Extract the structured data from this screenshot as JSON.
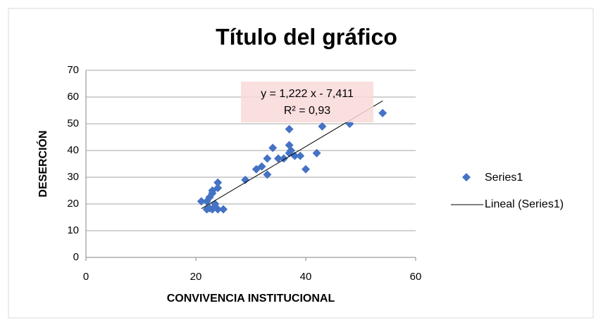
{
  "chart_data": {
    "type": "scatter",
    "title": "Título del gráfico",
    "x_label": "CONVIVENCIA INSTITUCIONAL",
    "y_label": "DESERCIÓN",
    "series": [
      {
        "name": "Series1",
        "color": "#4472c4",
        "x": [
          21,
          22,
          22,
          22.5,
          23,
          23,
          24,
          24,
          22.5,
          23,
          24,
          25,
          23.5,
          29,
          31,
          32,
          33,
          33,
          34,
          35,
          36,
          37,
          37,
          37,
          37.3,
          38,
          39,
          40,
          42,
          43,
          48,
          54
        ],
        "values": [
          21,
          18,
          21,
          22.5,
          24,
          25,
          26,
          28,
          18.4,
          18,
          18,
          18,
          20,
          29,
          33,
          34,
          37,
          31,
          41,
          37,
          37,
          48,
          42,
          39,
          40,
          38,
          38,
          33,
          39,
          49,
          50,
          54
        ]
      }
    ],
    "trendline": {
      "name": "Lineal (Series1)",
      "slope": 1.222,
      "intercept": -7.411,
      "equation": "y = 1,222 x - 7,411",
      "r2": "R² = 0,93",
      "color": "#000000"
    },
    "xlim": [
      0,
      60
    ],
    "xticks": [
      0,
      20,
      40,
      60
    ],
    "ylim": [
      0,
      70
    ],
    "yticks": [
      0,
      10,
      20,
      30,
      40,
      50,
      60,
      70
    ],
    "grid": true
  }
}
